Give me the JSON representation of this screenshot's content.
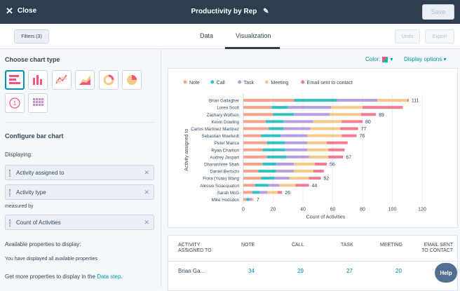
{
  "topbar": {
    "close_label": "Close",
    "title": "Productivity by Rep",
    "save_label": "Save"
  },
  "subbar": {
    "filters_label": "Filters (3)",
    "tab_data": "Data",
    "tab_visualization": "Visualization",
    "undo_label": "Undo",
    "export_label": "Export"
  },
  "sidebar": {
    "choose_title": "Choose chart type",
    "chart_types": [
      "horizontal-bar",
      "vertical-bar",
      "line",
      "area",
      "donut",
      "pie",
      "kpi",
      "table"
    ],
    "configure_title": "Configure bar chart",
    "displaying_label": "Displaying:",
    "dim1": "Activity assigned to",
    "dim2": "Activity type",
    "measured_label": "measured by",
    "measure": "Count of Activities",
    "available_title": "Available properties to display:",
    "available_text": "You have displayed all available properties",
    "more_prefix": "Get more properties to display in the ",
    "more_link": "Data step",
    "more_suffix": "."
  },
  "main": {
    "color_label": "Color:",
    "display_options_label": "Display options"
  },
  "colors": {
    "note": "#f8a08a",
    "call": "#2fc1bf",
    "task": "#b79de2",
    "meeting": "#f6c98b",
    "email": "#f27b92"
  },
  "chart_data": {
    "type": "bar",
    "orientation": "horizontal",
    "stacked": true,
    "ylabel": "Activity assigned to",
    "xlabel": "Count of Activities",
    "xlim": [
      0,
      120
    ],
    "xticks": [
      0,
      20,
      40,
      60,
      80,
      100,
      120
    ],
    "legend_position": "top-left",
    "categories": [
      "Brian Gallagher",
      "Loren Scott",
      "Zachary Wolfson",
      "Kevin Dowling",
      "Carlos Martinez Martinez",
      "Sebastian Moeferdt",
      "Peter Manca",
      "Ryan Charlton",
      "Audrey Jaspart",
      "Dhanashree Shah",
      "Daniel Bertschi",
      "Flora (Yuan) Wang",
      "Alessio Sciacquatori",
      "Sarah McG",
      "Mike Hodsdon"
    ],
    "totals": [
      111,
      107,
      89,
      80,
      77,
      76,
      70,
      68,
      67,
      56,
      54,
      52,
      44,
      26,
      7
    ],
    "total_labels": [
      "111",
      "",
      "89",
      "80",
      "77",
      "76",
      "",
      "",
      "67",
      "56",
      "",
      "52",
      "44",
      "26",
      "7"
    ],
    "series": [
      {
        "name": "Note",
        "values": [
          34,
          19,
          20,
          15,
          17,
          12,
          16,
          13,
          16,
          13,
          10,
          12,
          8,
          6,
          2
        ]
      },
      {
        "name": "Call",
        "values": [
          29,
          11,
          14,
          12,
          10,
          13,
          12,
          15,
          13,
          9,
          12,
          9,
          9,
          5,
          2
        ]
      },
      {
        "name": "Task",
        "values": [
          27,
          29,
          24,
          20,
          18,
          18,
          15,
          15,
          15,
          12,
          12,
          10,
          7,
          5,
          2
        ]
      },
      {
        "name": "Meeting",
        "values": [
          20,
          21,
          21,
          19,
          20,
          23,
          13,
          14,
          13,
          14,
          13,
          13,
          11,
          7,
          1
        ]
      },
      {
        "name": "Email sent to contact",
        "values": [
          1,
          27,
          10,
          14,
          12,
          10,
          14,
          11,
          10,
          8,
          7,
          8,
          9,
          3,
          0
        ]
      }
    ]
  },
  "table": {
    "headers": [
      "ACTIVITY ASSIGNED TO",
      "NOTE",
      "CALL",
      "TASK",
      "MEETING",
      "EMAIL SENT TO CONTACT"
    ],
    "row1": {
      "name": "Brian Ga...",
      "note": "34",
      "call": "29",
      "task": "27",
      "meeting": "20"
    }
  },
  "help_label": "Help"
}
